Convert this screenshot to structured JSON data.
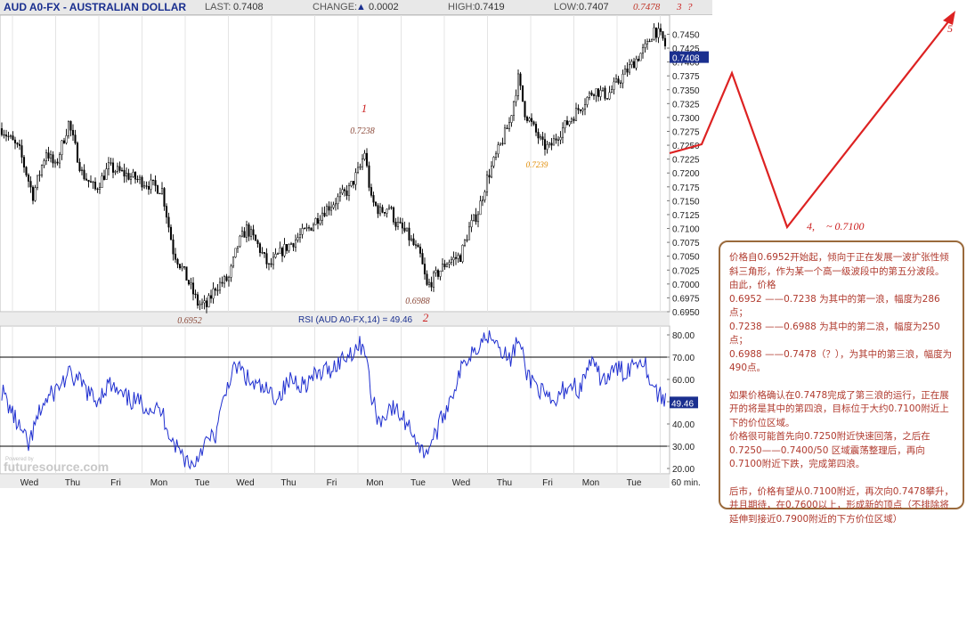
{
  "header": {
    "title": "AUD A0-FX - AUSTRALIAN DOLLAR",
    "last_label": "LAST:",
    "last_value": "0.7408",
    "change_label": "CHANGE:",
    "change_value": "0.0002",
    "high_label": "HIGH:",
    "high_value": "0.7419",
    "low_label": "LOW:",
    "low_value": "0.7407",
    "corner_value": "0.7478"
  },
  "chart_data": [
    {
      "type": "candlestick",
      "title": "AUD A0-FX - AUSTRALIAN DOLLAR",
      "interval": "60 min.",
      "ylim": [
        0.695,
        0.7478
      ],
      "y_ticks": [
        "0.6950",
        "0.6975",
        "0.7000",
        "0.7025",
        "0.7050",
        "0.7075",
        "0.7100",
        "0.7125",
        "0.7150",
        "0.7175",
        "0.7200",
        "0.7225",
        "0.7250",
        "0.7275",
        "0.7300",
        "0.7325",
        "0.7350",
        "0.7375",
        "0.7400",
        "0.7425",
        "0.7450"
      ],
      "x_ticks": [
        "Wed",
        "Thu",
        "Fri",
        "Mon",
        "Tue",
        "Wed",
        "Thu",
        "Fri",
        "Mon",
        "Tue",
        "Wed",
        "Thu",
        "Fri",
        "Mon",
        "Tue"
      ],
      "last_price_tag": "0.7408",
      "price_path": [
        [
          0.0,
          0.728
        ],
        [
          0.04,
          0.724
        ],
        [
          0.07,
          0.716
        ],
        [
          0.1,
          0.724
        ],
        [
          0.12,
          0.721
        ],
        [
          0.15,
          0.729
        ],
        [
          0.18,
          0.72
        ],
        [
          0.21,
          0.717
        ],
        [
          0.24,
          0.721
        ],
        [
          0.27,
          0.72
        ],
        [
          0.3,
          0.719
        ],
        [
          0.33,
          0.718
        ],
        [
          0.36,
          0.717
        ],
        [
          0.385,
          0.706
        ],
        [
          0.41,
          0.702
        ],
        [
          0.44,
          0.6965
        ],
        [
          0.46,
          0.696
        ],
        [
          0.48,
          0.6995
        ],
        [
          0.51,
          0.701
        ],
        [
          0.53,
          0.707
        ],
        [
          0.55,
          0.71
        ],
        [
          0.575,
          0.707
        ],
        [
          0.6,
          0.703
        ],
        [
          0.63,
          0.706
        ],
        [
          0.66,
          0.708
        ],
        [
          0.69,
          0.71
        ],
        [
          0.72,
          0.713
        ],
        [
          0.75,
          0.715
        ],
        [
          0.78,
          0.717
        ],
        [
          0.805,
          0.721
        ],
        [
          0.815,
          0.7238
        ],
        [
          0.83,
          0.715
        ],
        [
          0.85,
          0.713
        ],
        [
          0.87,
          0.714
        ],
        [
          0.885,
          0.711
        ],
        [
          0.91,
          0.709
        ],
        [
          0.94,
          0.705
        ],
        [
          0.955,
          0.6995
        ],
        [
          0.97,
          0.701
        ],
        [
          1.0,
          0.704
        ],
        [
          1.03,
          0.705
        ],
        [
          1.05,
          0.71
        ],
        [
          1.07,
          0.713
        ],
        [
          1.09,
          0.719
        ],
        [
          1.12,
          0.725
        ],
        [
          1.14,
          0.729
        ],
        [
          1.16,
          0.737
        ],
        [
          1.175,
          0.731
        ],
        [
          1.195,
          0.728
        ],
        [
          1.215,
          0.725
        ],
        [
          1.23,
          0.7245
        ],
        [
          1.25,
          0.727
        ],
        [
          1.27,
          0.729
        ],
        [
          1.3,
          0.732
        ],
        [
          1.33,
          0.735
        ],
        [
          1.36,
          0.734
        ],
        [
          1.39,
          0.737
        ],
        [
          1.42,
          0.74
        ],
        [
          1.45,
          0.743
        ],
        [
          1.465,
          0.746
        ],
        [
          1.485,
          0.744
        ],
        [
          1.5,
          0.7408
        ]
      ],
      "annotations": [
        {
          "text": "1",
          "role": "wave-label"
        },
        {
          "text": "0.7238",
          "role": "price"
        },
        {
          "text": "2",
          "role": "wave-label"
        },
        {
          "text": "0.6988",
          "role": "price"
        },
        {
          "text": "0.6952",
          "role": "price"
        },
        {
          "text": "0.7239",
          "role": "price"
        },
        {
          "text": "3",
          "role": "wave-label"
        },
        {
          "text": "?",
          "role": "wave-label"
        },
        {
          "text": "4,",
          "role": "wave-label"
        },
        {
          "text": "~ 0.7100",
          "role": "price"
        },
        {
          "text": "5",
          "role": "wave-label"
        }
      ]
    },
    {
      "type": "line",
      "title": "RSI (AUD A0-FX,14) = 49.46",
      "ylim": [
        20,
        80
      ],
      "y_ticks": [
        "20.00",
        "30.00",
        "40.00",
        "50.00",
        "60.00",
        "70.00",
        "80.00"
      ],
      "reference_lines": [
        70,
        30
      ],
      "last_value_tag": "49.46",
      "rsi_path": [
        [
          0.0,
          55
        ],
        [
          0.03,
          42
        ],
        [
          0.06,
          30
        ],
        [
          0.09,
          48
        ],
        [
          0.12,
          55
        ],
        [
          0.15,
          62
        ],
        [
          0.18,
          58
        ],
        [
          0.21,
          50
        ],
        [
          0.24,
          58
        ],
        [
          0.27,
          52
        ],
        [
          0.3,
          50
        ],
        [
          0.33,
          48
        ],
        [
          0.36,
          45
        ],
        [
          0.385,
          32
        ],
        [
          0.41,
          25
        ],
        [
          0.43,
          21
        ],
        [
          0.45,
          30
        ],
        [
          0.48,
          35
        ],
        [
          0.51,
          60
        ],
        [
          0.53,
          66
        ],
        [
          0.56,
          58
        ],
        [
          0.59,
          55
        ],
        [
          0.62,
          52
        ],
        [
          0.65,
          60
        ],
        [
          0.68,
          58
        ],
        [
          0.71,
          62
        ],
        [
          0.74,
          65
        ],
        [
          0.77,
          70
        ],
        [
          0.8,
          75
        ],
        [
          0.815,
          76
        ],
        [
          0.83,
          52
        ],
        [
          0.85,
          40
        ],
        [
          0.87,
          48
        ],
        [
          0.89,
          45
        ],
        [
          0.92,
          38
        ],
        [
          0.945,
          27
        ],
        [
          0.96,
          30
        ],
        [
          0.98,
          38
        ],
        [
          1.0,
          48
        ],
        [
          1.02,
          58
        ],
        [
          1.04,
          68
        ],
        [
          1.06,
          74
        ],
        [
          1.08,
          78
        ],
        [
          1.1,
          82
        ],
        [
          1.12,
          75
        ],
        [
          1.14,
          68
        ],
        [
          1.16,
          78
        ],
        [
          1.18,
          62
        ],
        [
          1.2,
          58
        ],
        [
          1.22,
          52
        ],
        [
          1.24,
          48
        ],
        [
          1.26,
          55
        ],
        [
          1.28,
          58
        ],
        [
          1.3,
          55
        ],
        [
          1.32,
          68
        ],
        [
          1.34,
          62
        ],
        [
          1.36,
          60
        ],
        [
          1.38,
          65
        ],
        [
          1.4,
          63
        ],
        [
          1.42,
          68
        ],
        [
          1.44,
          70
        ],
        [
          1.46,
          58
        ],
        [
          1.48,
          52
        ],
        [
          1.5,
          49.46
        ]
      ]
    }
  ],
  "brand": {
    "powered_by": "Powered by",
    "name": "futuresource.com"
  },
  "note": {
    "lines": [
      "价格自0.6952开始起，倾向于正在发展一波扩张性倾斜三角形，作为某一个高一级波段中的第五分波段。",
      "由此，价格",
      "0.6952 ——0.7238 为其中的第一浪，幅度为286点；",
      "0.7238 ——0.6988 为其中的第二浪，幅度为250点；",
      "0.6988 ——0.7478（？），为其中的第三浪，幅度为490点。",
      "",
      "如果价格确认在0.7478完成了第三浪的运行，正在展开的将是其中的第四浪，目标位于大约0.7100附近上下的价位区域。",
      "价格很可能首先向0.7250附近快速回落，之后在0.7250——0.7400/50 区域震荡整理后，再向0.7100附近下跌，完成第四浪。",
      "",
      "后市，价格有望从0.7100附近，再次向0.7478攀升，并且期待，在0.7600以上，形成新的顶点（不排除将延伸到接近0.7900附近的下方价位区域）"
    ]
  },
  "colors": {
    "accent": "#1a2f8f",
    "candle": "#000000",
    "rsi_line": "#1f2fd0",
    "projection": "#dd2222",
    "note_text": "#b03a2e",
    "note_border": "#9a6a3c"
  }
}
